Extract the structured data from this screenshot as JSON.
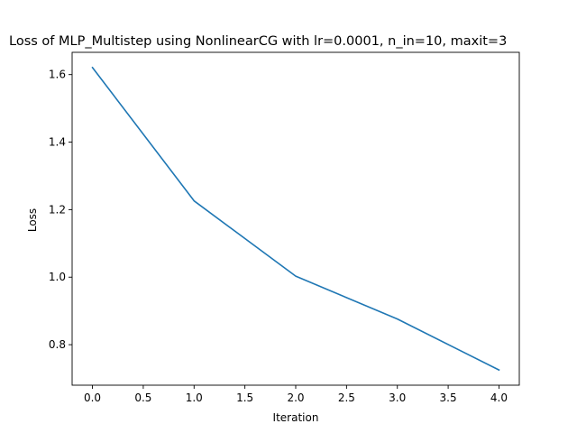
{
  "chart_data": {
    "type": "line",
    "title": "Loss of MLP_Multistep using NonlinearCG with lr=0.0001, n_in=10, maxit=3",
    "xlabel": "Iteration",
    "ylabel": "Loss",
    "x": [
      0,
      1,
      2,
      3,
      4
    ],
    "series": [
      {
        "values": [
          1.621,
          1.226,
          1.003,
          0.876,
          0.725
        ],
        "color": "#1f77b4"
      }
    ],
    "xlim": [
      -0.2,
      4.2
    ],
    "ylim": [
      0.68,
      1.666
    ],
    "xticks": [
      0.0,
      0.5,
      1.0,
      1.5,
      2.0,
      2.5,
      3.0,
      3.5,
      4.0
    ],
    "xtick_labels": [
      "0.0",
      "0.5",
      "1.0",
      "1.5",
      "2.0",
      "2.5",
      "3.0",
      "3.5",
      "4.0"
    ],
    "yticks": [
      0.8,
      1.0,
      1.2,
      1.4,
      1.6
    ],
    "ytick_labels": [
      "0.8",
      "1.0",
      "1.2",
      "1.4",
      "1.6"
    ],
    "grid": false,
    "legend": "none"
  }
}
